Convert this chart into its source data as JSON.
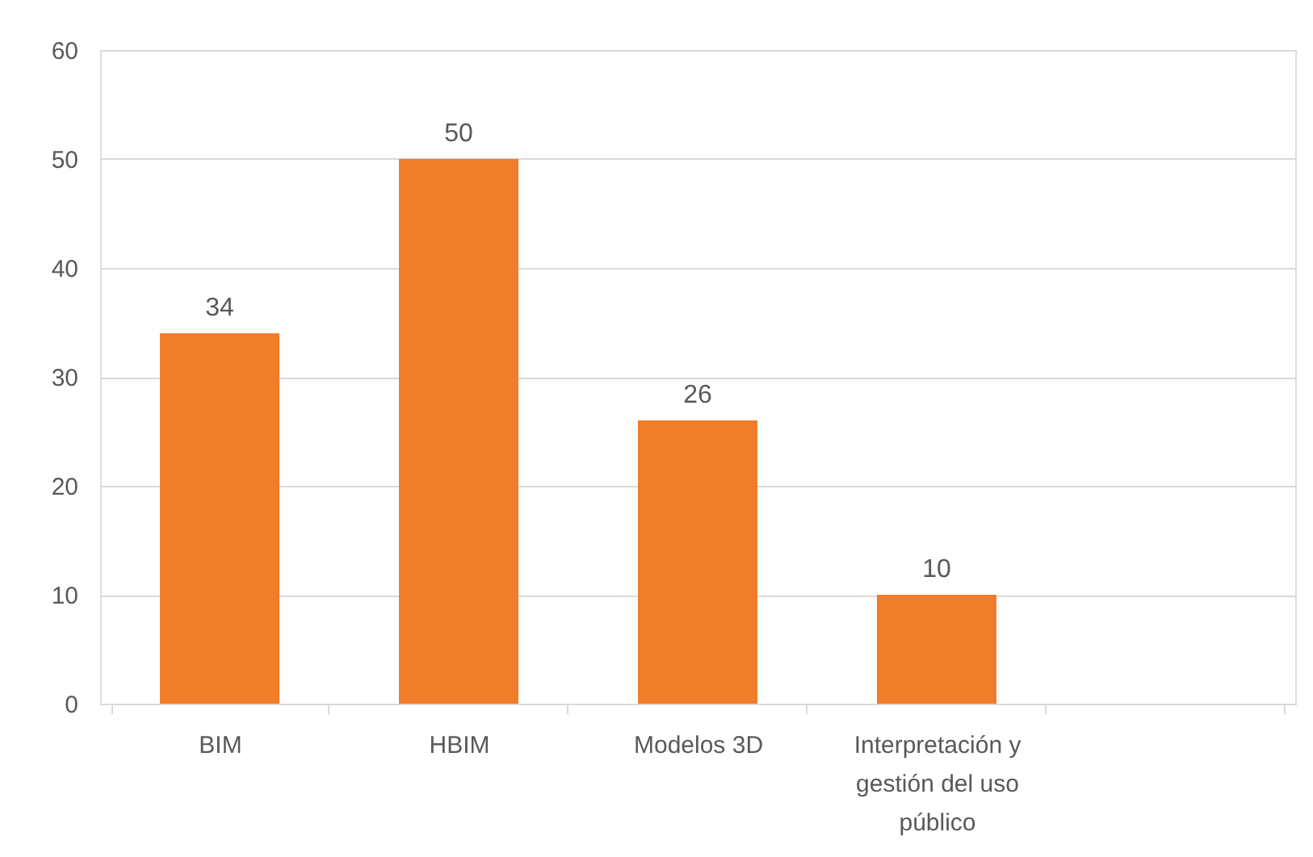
{
  "chart_data": {
    "type": "bar",
    "categories": [
      "BIM",
      "HBIM",
      "Modelos 3D",
      "Interpretación y gestión del uso público",
      null
    ],
    "values": [
      34,
      50,
      26,
      10,
      null
    ],
    "color": "#f07d2a",
    "ylim": [
      0,
      60
    ],
    "yticks": [
      0,
      10,
      20,
      30,
      40,
      50,
      60
    ],
    "grid": "y",
    "data_labels": true
  }
}
